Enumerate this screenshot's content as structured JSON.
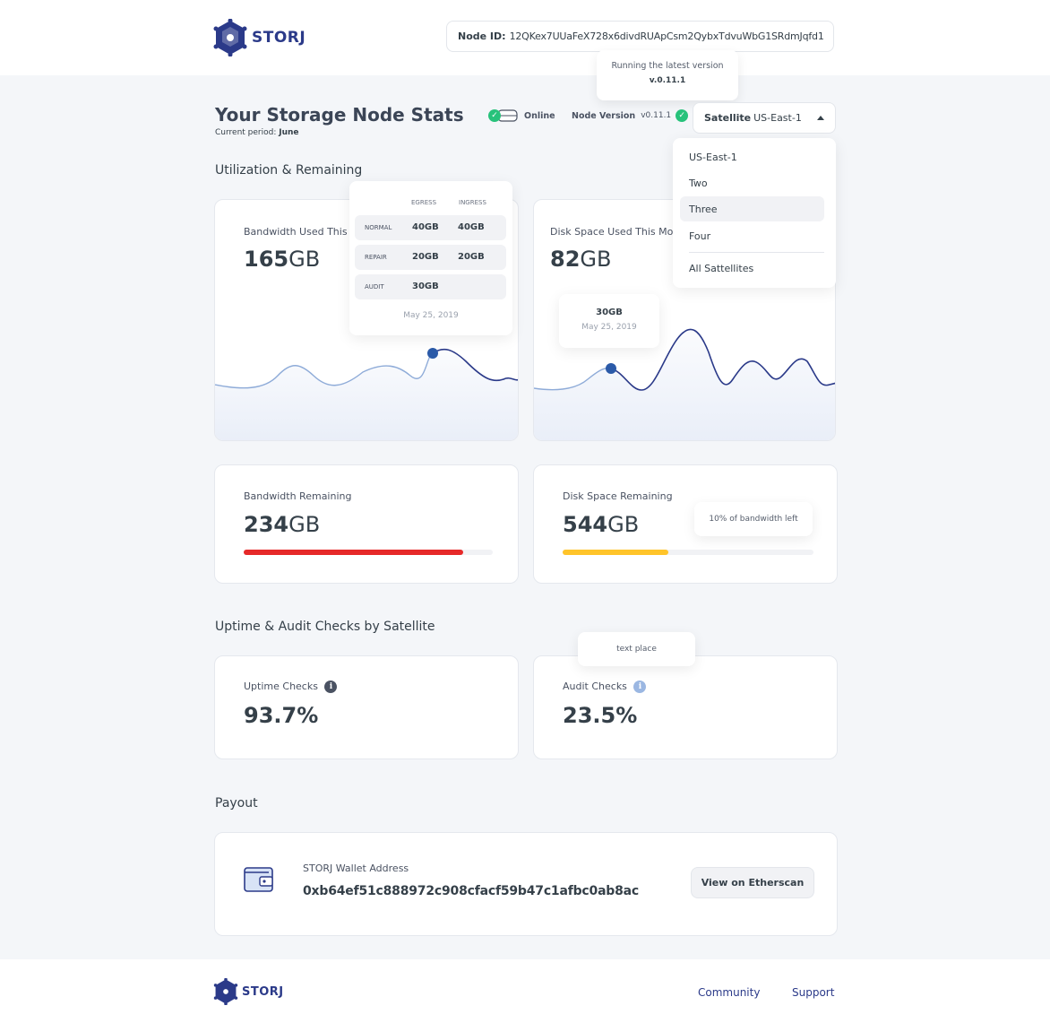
{
  "header": {
    "logo_text": "STORJ",
    "node_id_label": "Node ID:",
    "node_id_value": "12QKex7UUaFeX728x6divdRUApCsm2QybxTdvuWbG1SRdmJqfd1"
  },
  "version_tooltip": {
    "text": "Running the latest version",
    "version": "v.0.11.1"
  },
  "page": {
    "title": "Your Storage Node Stats",
    "period_label": "Current period:",
    "period_value": "June"
  },
  "status": {
    "online_label": "Online",
    "node_version_label": "Node Version",
    "node_version_value": "v0.11.1"
  },
  "satellite": {
    "label": "Satellite",
    "selected": "US-East-1",
    "options": [
      "US-East-1",
      "Two",
      "Three",
      "Four",
      "All Sattellites"
    ],
    "highlighted_index": 2
  },
  "sections": {
    "utilization": "Utilization & Remaining",
    "uptime": "Uptime & Audit Checks by Satellite",
    "payout": "Payout"
  },
  "bandwidth_used": {
    "label": "Bandwidth Used This Month",
    "value": "165",
    "unit": "GB"
  },
  "bandwidth_tooltip": {
    "col_egress": "EGRESS",
    "col_ingress": "INGRESS",
    "rows": [
      {
        "label": "NORMAL",
        "egress": "40GB",
        "ingress": "40GB"
      },
      {
        "label": "REPAIR",
        "egress": "20GB",
        "ingress": "20GB"
      },
      {
        "label": "AUDIT",
        "egress": "30GB",
        "ingress": ""
      }
    ],
    "date": "May 25, 2019"
  },
  "disk_used": {
    "label": "Disk Space Used This Month",
    "value": "82",
    "unit": "GB"
  },
  "disk_tooltip": {
    "value": "30GB",
    "date": "May 25, 2019"
  },
  "bandwidth_remaining": {
    "label": "Bandwidth Remaining",
    "value": "234",
    "unit": "GB",
    "fill_fraction": 0.88,
    "color": "#e62929"
  },
  "disk_remaining": {
    "label": "Disk Space Remaining",
    "value": "544",
    "unit": "GB",
    "fill_fraction": 0.42,
    "color": "#ffc42a",
    "tooltip": "10% of bandwidth left"
  },
  "uptime": {
    "label": "Uptime Checks",
    "value": "93.7%"
  },
  "audit": {
    "label": "Audit Checks",
    "value": "23.5%",
    "tooltip": "text place"
  },
  "payout": {
    "wallet_label": "STORJ Wallet Address",
    "wallet_address": "0xb64ef51c888972c908cfacf59b47c1afbc0ab8ac",
    "button_label": "View on Etherscan"
  },
  "footer": {
    "logo_text": "STORJ",
    "community": "Community",
    "support": "Support"
  },
  "colors": {
    "brand": "#2b3a89",
    "online": "#27c27b",
    "chart_line": "#2b5aa8",
    "chart_dot": "#2b5aa8"
  }
}
